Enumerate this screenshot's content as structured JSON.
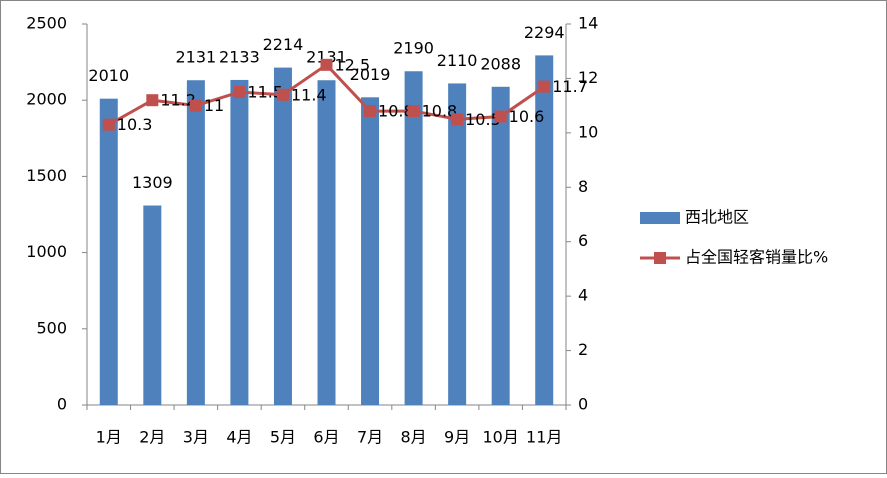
{
  "chart_data": {
    "type": "bar",
    "categories": [
      "1月",
      "2月",
      "3月",
      "4月",
      "5月",
      "6月",
      "7月",
      "8月",
      "9月",
      "10月",
      "11月"
    ],
    "series": [
      {
        "name": "西北地区",
        "type": "bar",
        "color": "#4f81bd",
        "values": [
          2010,
          1309,
          2131,
          2133,
          2214,
          2131,
          2019,
          2190,
          2110,
          2088,
          2294
        ]
      },
      {
        "name": "占全国轻客销量比%",
        "type": "line",
        "axis": "y2",
        "color": "#c0504d",
        "values": [
          10.3,
          11.2,
          11,
          11.5,
          11.4,
          12.5,
          10.8,
          10.8,
          10.5,
          10.6,
          11.7
        ]
      }
    ],
    "ylim": [
      0,
      2500
    ],
    "yticks": [
      0,
      500,
      1000,
      1500,
      2000,
      2500
    ],
    "y2lim": [
      0,
      14
    ],
    "y2ticks": [
      0,
      2,
      4,
      6,
      8,
      10,
      12,
      14
    ],
    "grid": false,
    "legend": "right"
  }
}
